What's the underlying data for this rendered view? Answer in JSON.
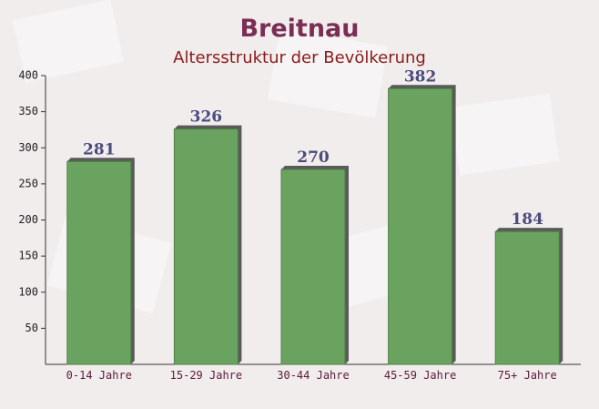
{
  "chart_data": {
    "type": "bar",
    "title": "Breitnau",
    "subtitle": "Altersstruktur der Bevölkerung",
    "categories": [
      "0-14 Jahre",
      "15-29 Jahre",
      "30-44 Jahre",
      "45-59 Jahre",
      "75+ Jahre"
    ],
    "values": [
      281,
      326,
      270,
      382,
      184
    ],
    "color": "#6aa35f",
    "ylim": [
      0,
      400
    ],
    "yticks": [
      50,
      100,
      150,
      200,
      250,
      300,
      350,
      400
    ]
  }
}
